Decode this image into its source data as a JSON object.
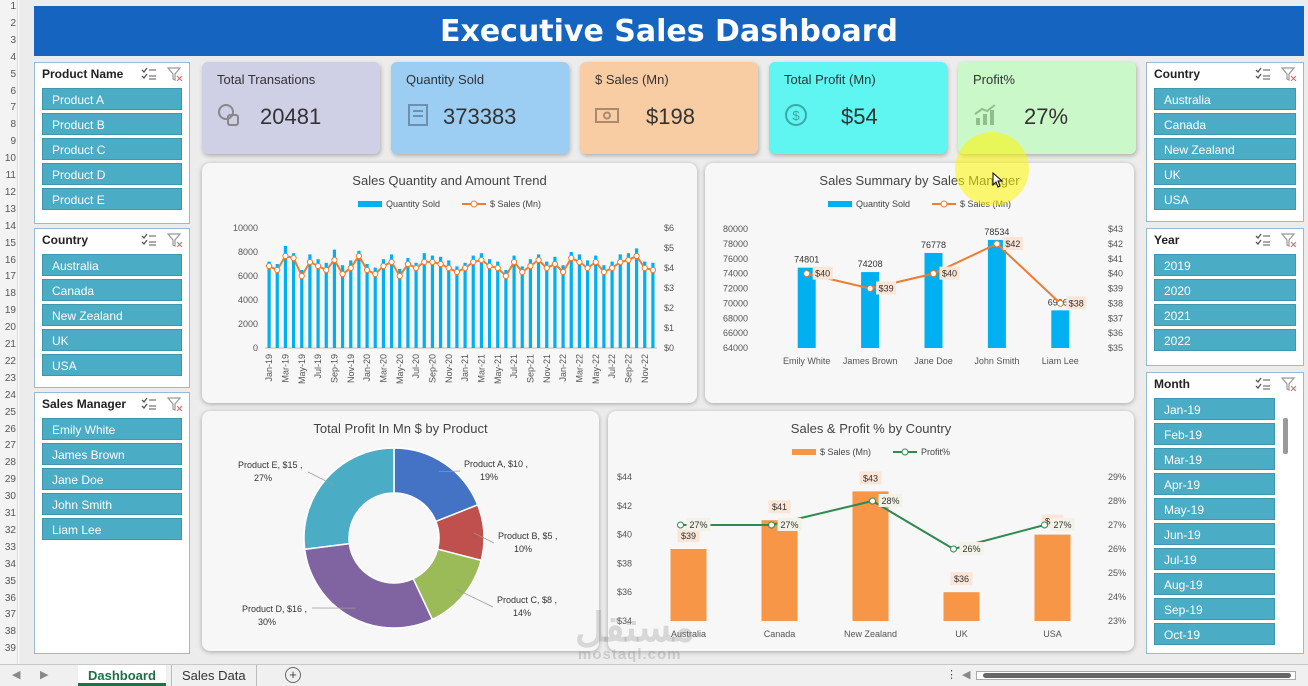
{
  "title": "Executive Sales Dashboard",
  "row_numbers": [
    "1",
    "2",
    "3",
    "4",
    "5",
    "6",
    "7",
    "8",
    "9",
    "10",
    "11",
    "12",
    "13",
    "14",
    "15",
    "16",
    "17",
    "18",
    "19",
    "20",
    "21",
    "22",
    "23",
    "24",
    "25",
    "26",
    "27",
    "28",
    "29",
    "30",
    "31",
    "32",
    "33",
    "34",
    "35",
    "36",
    "37",
    "38",
    "39"
  ],
  "slicers": {
    "product": {
      "title": "Product Name",
      "items": [
        "Product A",
        "Product B",
        "Product C",
        "Product D",
        "Product E"
      ]
    },
    "country_left": {
      "title": "Country",
      "items": [
        "Australia",
        "Canada",
        "New Zealand",
        "UK",
        "USA"
      ]
    },
    "manager": {
      "title": "Sales Manager",
      "items": [
        "Emily White",
        "James Brown",
        "Jane Doe",
        "John Smith",
        "Liam Lee"
      ]
    },
    "country_right": {
      "title": "Country",
      "items": [
        "Australia",
        "Canada",
        "New Zealand",
        "UK",
        "USA"
      ]
    },
    "year": {
      "title": "Year",
      "items": [
        "2019",
        "2020",
        "2021",
        "2022"
      ]
    },
    "month": {
      "title": "Month",
      "items": [
        "Jan-19",
        "Feb-19",
        "Mar-19",
        "Apr-19",
        "May-19",
        "Jun-19",
        "Jul-19",
        "Aug-19",
        "Sep-19",
        "Oct-19"
      ]
    }
  },
  "kpis": [
    {
      "label": "Total Transations",
      "value": "20481",
      "color": "#cfcfe6",
      "icon": "coins-icon"
    },
    {
      "label": "Quantity Sold",
      "value": "373383",
      "color": "#9ccdf2",
      "icon": "receipt-icon"
    },
    {
      "label": "$ Sales (Mn)",
      "value": "$198",
      "color": "#f9cda3",
      "icon": "money-icon"
    },
    {
      "label": "Total Profit (Mn)",
      "value": "$54",
      "color": "#5ff5f0",
      "icon": "dollar-circle-icon"
    },
    {
      "label": "Profit%",
      "value": "27%",
      "color": "#cbf8c8",
      "icon": "growth-chart-icon"
    }
  ],
  "chart_data": [
    {
      "type": "bar",
      "title": "Sales Quantity and Amount Trend",
      "legend": [
        "Quantity Sold",
        "$ Sales (Mn)"
      ],
      "x_tick_labels": [
        "Jan-19",
        "Mar-19",
        "May-19",
        "Jul-19",
        "Sep-19",
        "Nov-19",
        "Jan-20",
        "Mar-20",
        "May-20",
        "Jul-20",
        "Sep-20",
        "Nov-20",
        "Jan-21",
        "Mar-21",
        "May-21",
        "Jul-21",
        "Sep-21",
        "Nov-21",
        "Jan-22",
        "Mar-22",
        "May-22",
        "Jul-22",
        "Sep-22",
        "Nov-22"
      ],
      "y_left_ticks": [
        "0",
        "2000",
        "4000",
        "6000",
        "8000",
        "10000"
      ],
      "y_right_ticks": [
        "$0",
        "$1",
        "$2",
        "$3",
        "$4",
        "$5",
        "$6"
      ],
      "ylim_left": [
        0,
        10000
      ],
      "ylim_right": [
        0,
        6
      ],
      "quantity": [
        7200,
        7000,
        8500,
        7900,
        6500,
        7800,
        7400,
        7100,
        8200,
        6900,
        7300,
        8100,
        7000,
        6700,
        7400,
        7800,
        6600,
        7500,
        7100,
        7900,
        7700,
        7600,
        7300,
        6800,
        7100,
        7700,
        7900,
        7400,
        7200,
        6500,
        7700,
        6800,
        7400,
        7800,
        7200,
        7600,
        6900,
        8000,
        7800,
        7300,
        7700,
        6900,
        7200,
        7800,
        7900,
        8300,
        7200,
        7100
      ],
      "sales": [
        4.1,
        3.9,
        4.6,
        4.5,
        3.6,
        4.3,
        4.1,
        3.9,
        4.4,
        3.7,
        4.0,
        4.6,
        3.9,
        3.7,
        4.1,
        4.3,
        3.6,
        4.2,
        4.0,
        4.3,
        4.3,
        4.2,
        4.0,
        3.8,
        4.0,
        4.3,
        4.4,
        4.1,
        4.0,
        3.6,
        4.3,
        3.8,
        4.1,
        4.4,
        4.0,
        4.2,
        3.8,
        4.5,
        4.3,
        4.0,
        4.3,
        3.8,
        4.0,
        4.3,
        4.4,
        4.6,
        4.0,
        3.9
      ]
    },
    {
      "type": "bar",
      "title": "Sales Summary by Sales Manager",
      "legend": [
        "Quantity Sold",
        "$ Sales (Mn)"
      ],
      "categories": [
        "Emily White",
        "James Brown",
        "Jane Doe",
        "John Smith",
        "Liam Lee"
      ],
      "quantity": [
        74801,
        74208,
        76778,
        78534,
        69062
      ],
      "quantity_labels": [
        "74801",
        "74208",
        "76778",
        "78534",
        "6906?"
      ],
      "sales": [
        40,
        39,
        40,
        42,
        38
      ],
      "sales_labels": [
        "$40",
        "$39",
        "$40",
        "$42",
        "$38"
      ],
      "y_left_ticks": [
        "64000",
        "66000",
        "68000",
        "70000",
        "72000",
        "74000",
        "76000",
        "78000",
        "80000"
      ],
      "y_right_ticks": [
        "$35",
        "$36",
        "$37",
        "$38",
        "$39",
        "$40",
        "$41",
        "$42",
        "$43"
      ],
      "ylim_left": [
        64000,
        80000
      ],
      "ylim_right": [
        35,
        43
      ]
    },
    {
      "type": "pie",
      "title": "Total Profit In Mn $ by Product",
      "slices": [
        {
          "label_line1": "Product A, $10 ,",
          "label_line2": "19%",
          "value": 19,
          "color": "#4472c4"
        },
        {
          "label_line1": "Product B, $5 ,",
          "label_line2": "10%",
          "value": 10,
          "color": "#c0504d"
        },
        {
          "label_line1": "Product C, $8 ,",
          "label_line2": "14%",
          "value": 14,
          "color": "#9bbb59"
        },
        {
          "label_line1": "Product D, $16 ,",
          "label_line2": "30%",
          "value": 30,
          "color": "#8064a2"
        },
        {
          "label_line1": "Product E, $15 ,",
          "label_line2": "27%",
          "value": 27,
          "color": "#4bacc6"
        }
      ]
    },
    {
      "type": "bar",
      "title": "Sales & Profit % by Country",
      "legend": [
        "$ Sales (Mn)",
        "Profit%"
      ],
      "categories": [
        "Australia",
        "Canada",
        "New Zealand",
        "UK",
        "USA"
      ],
      "sales": [
        39,
        41,
        43,
        36,
        40
      ],
      "sales_labels": [
        "$39",
        "$41",
        "$43",
        "$36",
        "$40"
      ],
      "profit_pct": [
        27,
        27,
        28,
        26,
        27
      ],
      "profit_labels": [
        "27%",
        "27%",
        "28%",
        "26%",
        "27%"
      ],
      "y_left_ticks": [
        "$34",
        "$36",
        "$38",
        "$40",
        "$42",
        "$44"
      ],
      "y_right_ticks": [
        "23%",
        "24%",
        "25%",
        "26%",
        "27%",
        "28%",
        "29%"
      ],
      "ylim_left": [
        34,
        44
      ],
      "ylim_right": [
        23,
        29
      ]
    }
  ],
  "colors": {
    "bar_blue": "#00b0f0",
    "line_orange": "#ed7d31",
    "bar_orange": "#f79646",
    "line_green": "#2e8b4f",
    "slicer_item": "#4bacc6"
  },
  "sheet_tabs": {
    "active": "Dashboard",
    "other": "Sales Data"
  },
  "watermark": {
    "line1": "مستقل",
    "line2": "mostaql.com"
  }
}
